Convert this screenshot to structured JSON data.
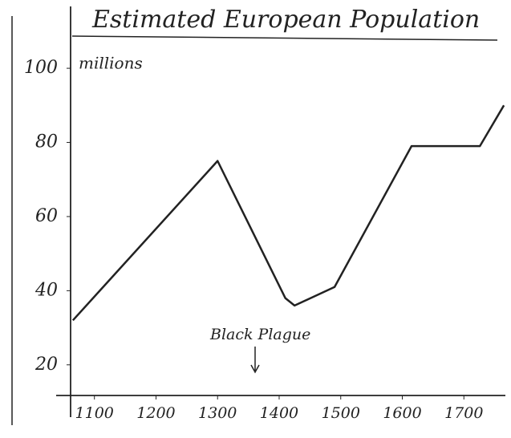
{
  "chart_data": {
    "type": "line",
    "title": "Estimated European Population",
    "y_label": "millions",
    "annotation": "Black Plague",
    "x": [
      1065,
      1300,
      1410,
      1425,
      1490,
      1615,
      1726,
      1765
    ],
    "series": [
      {
        "name": "Population",
        "color": "#222222",
        "values": [
          32,
          75,
          38,
          36,
          41,
          79,
          79,
          90
        ]
      }
    ],
    "xlim": [
      1060,
      1770
    ],
    "xticks": [
      1100,
      1200,
      1300,
      1400,
      1500,
      1600,
      1700
    ],
    "ylim": [
      10,
      105
    ],
    "yticks": [
      20,
      40,
      60,
      80,
      100
    ]
  }
}
